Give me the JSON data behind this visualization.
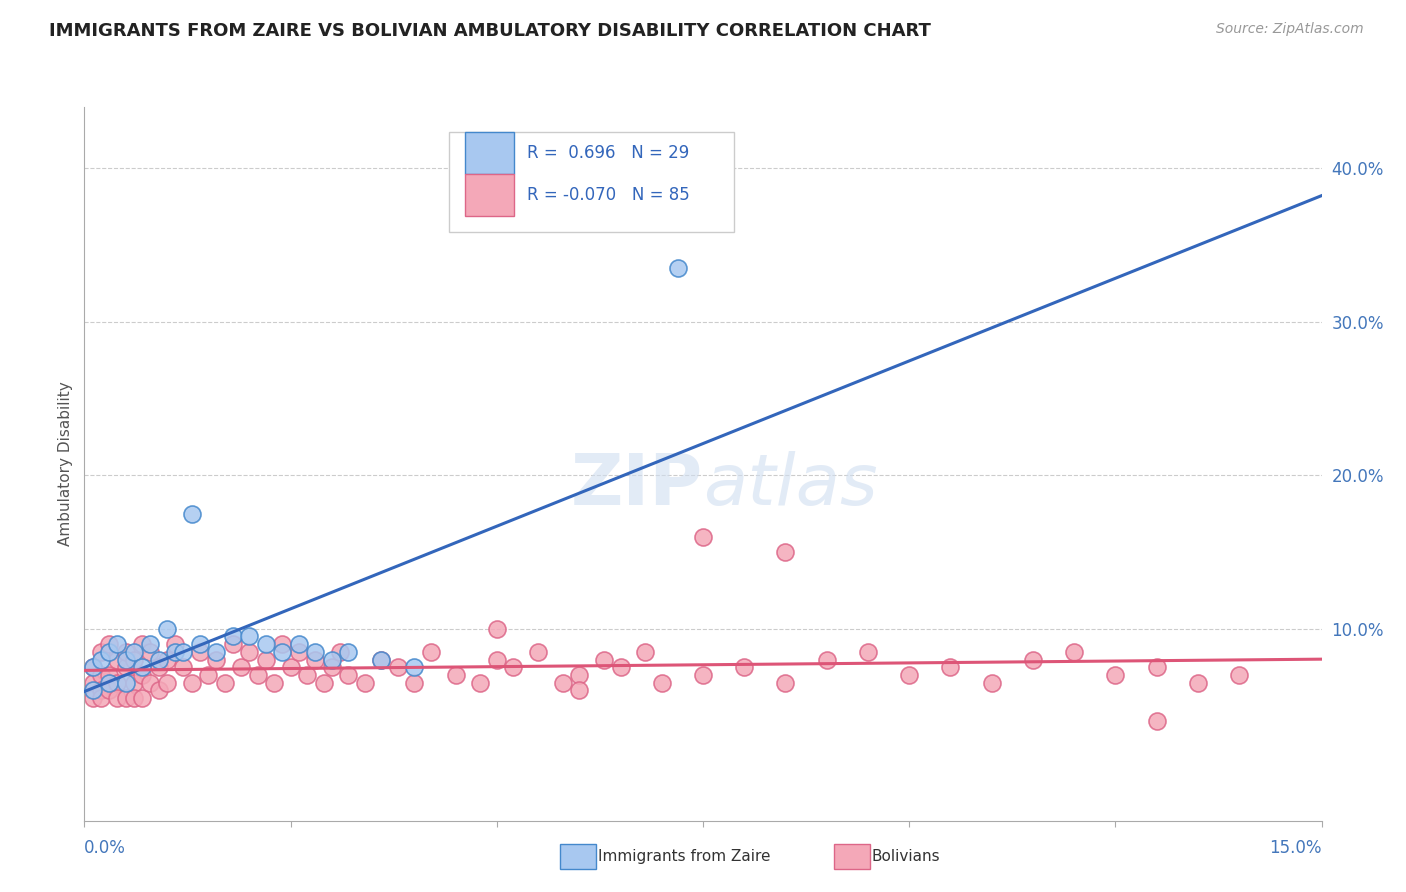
{
  "title": "IMMIGRANTS FROM ZAIRE VS BOLIVIAN AMBULATORY DISABILITY CORRELATION CHART",
  "source": "Source: ZipAtlas.com",
  "ylabel": "Ambulatory Disability",
  "ylabel_right_ticks": [
    "40.0%",
    "30.0%",
    "20.0%",
    "10.0%"
  ],
  "ylabel_right_vals": [
    0.4,
    0.3,
    0.2,
    0.1
  ],
  "xmin": 0.0,
  "xmax": 0.15,
  "ymin": -0.025,
  "ymax": 0.44,
  "legend_r_zaire": "0.696",
  "legend_n_zaire": "29",
  "legend_r_bolivian": "-0.070",
  "legend_n_bolivian": "85",
  "color_zaire_fill": "#A8C8F0",
  "color_bolivian_fill": "#F4A8B8",
  "color_zaire_edge": "#4488CC",
  "color_bolivian_edge": "#DD6688",
  "color_zaire_line": "#3366BB",
  "color_bolivian_line": "#DD5577",
  "background_color": "#ffffff",
  "zaire_x": [
    0.001,
    0.001,
    0.002,
    0.003,
    0.003,
    0.004,
    0.005,
    0.005,
    0.006,
    0.007,
    0.008,
    0.009,
    0.01,
    0.011,
    0.012,
    0.013,
    0.014,
    0.016,
    0.018,
    0.02,
    0.022,
    0.024,
    0.026,
    0.028,
    0.03,
    0.032,
    0.036,
    0.04,
    0.072
  ],
  "zaire_y": [
    0.075,
    0.06,
    0.08,
    0.085,
    0.065,
    0.09,
    0.08,
    0.065,
    0.085,
    0.075,
    0.09,
    0.08,
    0.1,
    0.085,
    0.085,
    0.175,
    0.09,
    0.085,
    0.095,
    0.095,
    0.09,
    0.085,
    0.09,
    0.085,
    0.08,
    0.085,
    0.08,
    0.075,
    0.335
  ],
  "bolivian_x": [
    0.001,
    0.001,
    0.001,
    0.002,
    0.002,
    0.002,
    0.002,
    0.003,
    0.003,
    0.003,
    0.004,
    0.004,
    0.004,
    0.005,
    0.005,
    0.005,
    0.006,
    0.006,
    0.006,
    0.007,
    0.007,
    0.007,
    0.008,
    0.008,
    0.009,
    0.009,
    0.01,
    0.01,
    0.011,
    0.012,
    0.013,
    0.014,
    0.015,
    0.016,
    0.017,
    0.018,
    0.019,
    0.02,
    0.021,
    0.022,
    0.023,
    0.024,
    0.025,
    0.026,
    0.027,
    0.028,
    0.029,
    0.03,
    0.031,
    0.032,
    0.034,
    0.036,
    0.038,
    0.04,
    0.042,
    0.045,
    0.048,
    0.05,
    0.052,
    0.055,
    0.058,
    0.06,
    0.063,
    0.065,
    0.068,
    0.07,
    0.075,
    0.08,
    0.085,
    0.09,
    0.095,
    0.1,
    0.105,
    0.11,
    0.115,
    0.12,
    0.125,
    0.13,
    0.135,
    0.14,
    0.05,
    0.06,
    0.075,
    0.085,
    0.13
  ],
  "bolivian_y": [
    0.075,
    0.065,
    0.055,
    0.085,
    0.07,
    0.06,
    0.055,
    0.09,
    0.07,
    0.06,
    0.08,
    0.065,
    0.055,
    0.075,
    0.085,
    0.055,
    0.08,
    0.065,
    0.055,
    0.09,
    0.07,
    0.055,
    0.085,
    0.065,
    0.075,
    0.06,
    0.08,
    0.065,
    0.09,
    0.075,
    0.065,
    0.085,
    0.07,
    0.08,
    0.065,
    0.09,
    0.075,
    0.085,
    0.07,
    0.08,
    0.065,
    0.09,
    0.075,
    0.085,
    0.07,
    0.08,
    0.065,
    0.075,
    0.085,
    0.07,
    0.065,
    0.08,
    0.075,
    0.065,
    0.085,
    0.07,
    0.065,
    0.08,
    0.075,
    0.085,
    0.065,
    0.07,
    0.08,
    0.075,
    0.085,
    0.065,
    0.07,
    0.075,
    0.065,
    0.08,
    0.085,
    0.07,
    0.075,
    0.065,
    0.08,
    0.085,
    0.07,
    0.075,
    0.065,
    0.07,
    0.1,
    0.06,
    0.16,
    0.15,
    0.04
  ]
}
